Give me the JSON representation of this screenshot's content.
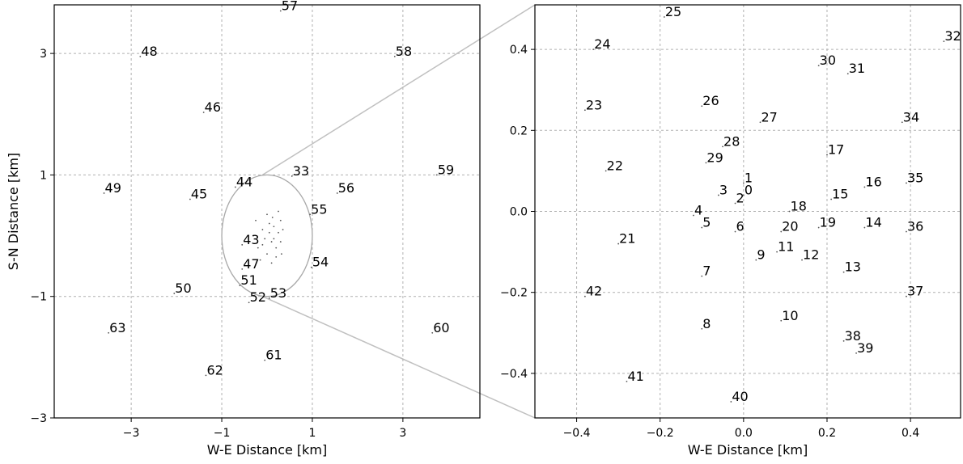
{
  "chart_data": [
    {
      "type": "scatter",
      "title": "",
      "xlabel": "W-E Distance [km]",
      "ylabel": "S-N Distance [km]",
      "xlim": [
        -4.7,
        4.7
      ],
      "ylim": [
        -3,
        3.8
      ],
      "xticks": [
        -3,
        -1,
        1,
        3
      ],
      "yticks": [
        -3,
        -1,
        1,
        3
      ],
      "xtick_labels": [
        "−3",
        "−1",
        "1",
        "3"
      ],
      "ytick_labels": [
        "−3",
        "−1",
        "1",
        "3"
      ],
      "grid": true,
      "zoom_circle": {
        "center": [
          0,
          0
        ],
        "radius": 1.0
      },
      "points": [
        {
          "label": "33",
          "x": 0.55,
          "y": 0.98
        },
        {
          "label": "43",
          "x": -0.55,
          "y": -0.15
        },
        {
          "label": "44",
          "x": -0.7,
          "y": 0.8
        },
        {
          "label": "45",
          "x": -1.7,
          "y": 0.6
        },
        {
          "label": "46",
          "x": -1.4,
          "y": 2.03
        },
        {
          "label": "47",
          "x": -0.55,
          "y": -0.55
        },
        {
          "label": "48",
          "x": -2.8,
          "y": 2.95
        },
        {
          "label": "49",
          "x": -3.6,
          "y": 0.7
        },
        {
          "label": "50",
          "x": -2.05,
          "y": -0.95
        },
        {
          "label": "51",
          "x": -0.6,
          "y": -0.82
        },
        {
          "label": "52",
          "x": -0.4,
          "y": -1.1
        },
        {
          "label": "53",
          "x": 0.05,
          "y": -1.03
        },
        {
          "label": "54",
          "x": 0.98,
          "y": -0.52
        },
        {
          "label": "55",
          "x": 0.95,
          "y": 0.35
        },
        {
          "label": "56",
          "x": 1.55,
          "y": 0.7
        },
        {
          "label": "57",
          "x": 0.3,
          "y": 3.7
        },
        {
          "label": "58",
          "x": 2.82,
          "y": 2.95
        },
        {
          "label": "59",
          "x": 3.75,
          "y": 1.0
        },
        {
          "label": "60",
          "x": 3.65,
          "y": -1.6
        },
        {
          "label": "61",
          "x": -0.05,
          "y": -2.05
        },
        {
          "label": "62",
          "x": -1.35,
          "y": -2.3
        },
        {
          "label": "63",
          "x": -3.5,
          "y": -1.6
        }
      ],
      "inner_dots": [
        {
          "x": -0.1,
          "y": 0.1
        },
        {
          "x": 0.05,
          "y": 0.2
        },
        {
          "x": 0.15,
          "y": 0.15
        },
        {
          "x": 0.25,
          "y": 0.05
        },
        {
          "x": -0.05,
          "y": -0.05
        },
        {
          "x": 0.1,
          "y": -0.1
        },
        {
          "x": 0.2,
          "y": -0.2
        },
        {
          "x": 0.3,
          "y": -0.1
        },
        {
          "x": -0.2,
          "y": -0.2
        },
        {
          "x": 0.0,
          "y": -0.3
        },
        {
          "x": 0.12,
          "y": 0.3
        },
        {
          "x": 0.3,
          "y": 0.25
        },
        {
          "x": -0.25,
          "y": 0.25
        },
        {
          "x": -0.15,
          "y": -0.4
        },
        {
          "x": 0.2,
          "y": -0.35
        },
        {
          "x": 0.05,
          "y": 0.05
        },
        {
          "x": 0.35,
          "y": 0.1
        },
        {
          "x": -0.3,
          "y": 0.0
        },
        {
          "x": 0.1,
          "y": -0.45
        },
        {
          "x": 0.25,
          "y": 0.4
        },
        {
          "x": 0.0,
          "y": 0.35
        },
        {
          "x": -0.1,
          "y": -0.15
        },
        {
          "x": 0.15,
          "y": -0.05
        },
        {
          "x": 0.32,
          "y": -0.3
        }
      ]
    },
    {
      "type": "scatter",
      "title": "",
      "xlabel": "W-E Distance [km]",
      "ylabel": "",
      "xlim": [
        -0.5,
        0.52
      ],
      "ylim": [
        -0.51,
        0.51
      ],
      "xticks": [
        -0.4,
        -0.2,
        0.0,
        0.2,
        0.4
      ],
      "yticks": [
        -0.4,
        -0.2,
        0.0,
        0.2,
        0.4
      ],
      "xtick_labels": [
        "−0.4",
        "−0.2",
        "0.0",
        "0.2",
        "0.4"
      ],
      "ytick_labels": [
        "−0.4",
        "−0.2",
        "0.0",
        "0.2",
        "0.4"
      ],
      "grid": true,
      "points": [
        {
          "label": "0",
          "x": 0.0,
          "y": 0.04
        },
        {
          "label": "1",
          "x": 0.0,
          "y": 0.07
        },
        {
          "label": "2",
          "x": -0.02,
          "y": 0.02
        },
        {
          "label": "3",
          "x": -0.06,
          "y": 0.04
        },
        {
          "label": "4",
          "x": -0.12,
          "y": -0.01
        },
        {
          "label": "5",
          "x": -0.1,
          "y": -0.04
        },
        {
          "label": "6",
          "x": -0.02,
          "y": -0.05
        },
        {
          "label": "7",
          "x": -0.1,
          "y": -0.16
        },
        {
          "label": "8",
          "x": -0.1,
          "y": -0.29
        },
        {
          "label": "9",
          "x": 0.03,
          "y": -0.12
        },
        {
          "label": "10",
          "x": 0.09,
          "y": -0.27
        },
        {
          "label": "11",
          "x": 0.08,
          "y": -0.1
        },
        {
          "label": "12",
          "x": 0.14,
          "y": -0.12
        },
        {
          "label": "13",
          "x": 0.24,
          "y": -0.15
        },
        {
          "label": "14",
          "x": 0.29,
          "y": -0.04
        },
        {
          "label": "15",
          "x": 0.21,
          "y": 0.03
        },
        {
          "label": "16",
          "x": 0.29,
          "y": 0.06
        },
        {
          "label": "17",
          "x": 0.2,
          "y": 0.14
        },
        {
          "label": "18",
          "x": 0.11,
          "y": 0.0
        },
        {
          "label": "19",
          "x": 0.18,
          "y": -0.04
        },
        {
          "label": "20",
          "x": 0.09,
          "y": -0.05
        },
        {
          "label": "21",
          "x": -0.3,
          "y": -0.08
        },
        {
          "label": "22",
          "x": -0.33,
          "y": 0.1
        },
        {
          "label": "23",
          "x": -0.38,
          "y": 0.25
        },
        {
          "label": "24",
          "x": -0.36,
          "y": 0.4
        },
        {
          "label": "25",
          "x": -0.19,
          "y": 0.48
        },
        {
          "label": "26",
          "x": -0.1,
          "y": 0.26
        },
        {
          "label": "27",
          "x": 0.04,
          "y": 0.22
        },
        {
          "label": "28",
          "x": -0.05,
          "y": 0.16
        },
        {
          "label": "29",
          "x": -0.09,
          "y": 0.12
        },
        {
          "label": "30",
          "x": 0.18,
          "y": 0.36
        },
        {
          "label": "31",
          "x": 0.25,
          "y": 0.34
        },
        {
          "label": "32",
          "x": 0.48,
          "y": 0.42
        },
        {
          "label": "34",
          "x": 0.38,
          "y": 0.22
        },
        {
          "label": "35",
          "x": 0.39,
          "y": 0.07
        },
        {
          "label": "36",
          "x": 0.39,
          "y": -0.05
        },
        {
          "label": "37",
          "x": 0.39,
          "y": -0.21
        },
        {
          "label": "38",
          "x": 0.24,
          "y": -0.32
        },
        {
          "label": "39",
          "x": 0.27,
          "y": -0.35
        },
        {
          "label": "40",
          "x": -0.03,
          "y": -0.47
        },
        {
          "label": "41",
          "x": -0.28,
          "y": -0.42
        },
        {
          "label": "42",
          "x": -0.38,
          "y": -0.21
        }
      ]
    }
  ]
}
